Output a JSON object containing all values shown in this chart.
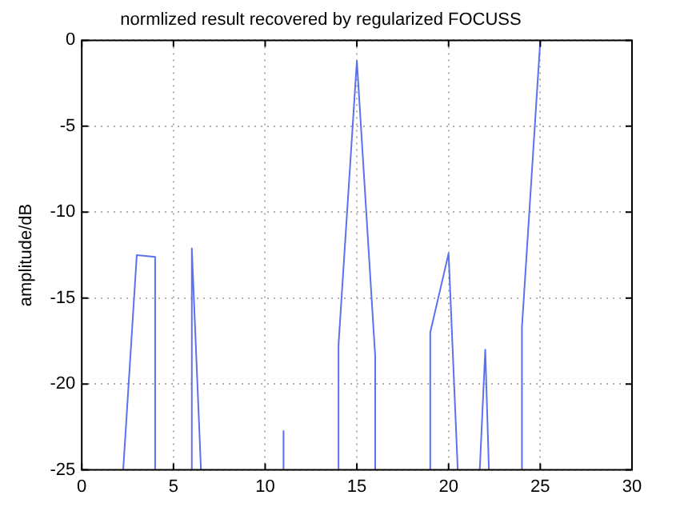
{
  "chart_data": {
    "type": "line",
    "title": "normlized result recovered by regularized FOCUSS",
    "ylabel": "amplitude/dB",
    "x": [
      2.26,
      3,
      4,
      4,
      4.01,
      5.95,
      6,
      6.5,
      6.51,
      11,
      11,
      11.01,
      14,
      14,
      15,
      16,
      16,
      16.01,
      19,
      19,
      20,
      20.5,
      20.51,
      21.7,
      22,
      22.2,
      22.21,
      24,
      24,
      25
    ],
    "series": [
      {
        "color": "#5a72f0",
        "values": [
          -25,
          -12.5,
          -12.6,
          -25,
          null,
          -25,
          -12.1,
          -25,
          null,
          -25,
          -22.7,
          null,
          -25,
          -17.7,
          -1.2,
          -18.4,
          -25,
          null,
          -25,
          -17,
          -12.4,
          -25,
          null,
          -25,
          -18,
          -25,
          null,
          -25,
          -16.7,
          0
        ]
      }
    ],
    "xlim": [
      0,
      30
    ],
    "xticks": [
      0,
      5,
      10,
      15,
      20,
      25,
      30
    ],
    "ylim": [
      -25,
      0
    ],
    "yticks": [
      -25,
      -20,
      -15,
      -10,
      -5,
      0
    ],
    "grid": true,
    "legend": false,
    "marker": "none",
    "line_style": "solid"
  }
}
